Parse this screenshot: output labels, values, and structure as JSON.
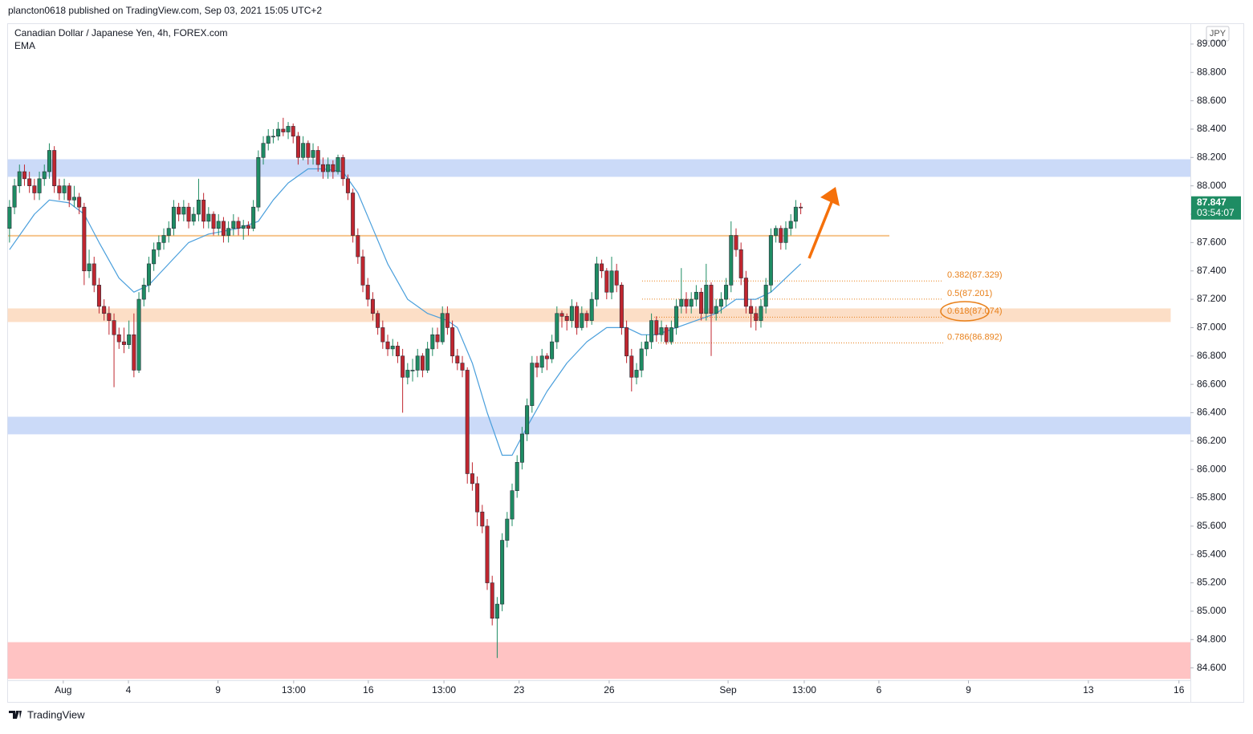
{
  "header": "plancton0618 published on TradingView.com, Sep 03, 2021 15:05 UTC+2",
  "footer": "TradingView",
  "chart_data": {
    "type": "candlestick",
    "title": "Canadian Dollar / Japanese Yen, 4h, FOREX.com",
    "indicator": "EMA",
    "currency": "JPY",
    "last_price_label": "87.847",
    "countdown": "03:54:07",
    "up_color": "#1e8c63",
    "down_color": "#c0262f",
    "candles": [
      [
        87.7,
        87.9,
        87.6,
        87.85
      ],
      [
        87.85,
        88.05,
        87.8,
        88.0
      ],
      [
        88.0,
        88.15,
        87.95,
        88.1
      ],
      [
        88.1,
        88.15,
        88.0,
        88.05
      ],
      [
        88.05,
        88.1,
        87.95,
        88.0
      ],
      [
        88.0,
        88.05,
        87.9,
        87.95
      ],
      [
        87.95,
        88.1,
        87.9,
        88.05
      ],
      [
        88.05,
        88.15,
        88.0,
        88.1
      ],
      [
        88.1,
        88.3,
        88.05,
        88.25
      ],
      [
        88.25,
        88.28,
        87.95,
        88.0
      ],
      [
        88.0,
        88.05,
        87.9,
        87.95
      ],
      [
        87.95,
        88.05,
        87.9,
        88.0
      ],
      [
        88.0,
        88.02,
        87.85,
        87.9
      ],
      [
        87.9,
        88.0,
        87.85,
        87.92
      ],
      [
        87.92,
        87.95,
        87.8,
        87.85
      ],
      [
        87.85,
        87.88,
        87.3,
        87.4
      ],
      [
        87.4,
        87.55,
        87.35,
        87.45
      ],
      [
        87.45,
        87.5,
        87.25,
        87.3
      ],
      [
        87.3,
        87.35,
        87.1,
        87.15
      ],
      [
        87.15,
        87.2,
        87.05,
        87.1
      ],
      [
        87.1,
        87.15,
        86.95,
        87.05
      ],
      [
        87.05,
        87.1,
        86.58,
        86.95
      ],
      [
        86.95,
        87.0,
        86.85,
        86.9
      ],
      [
        86.9,
        87.0,
        86.82,
        86.88
      ],
      [
        86.88,
        87.05,
        86.85,
        86.95
      ],
      [
        86.95,
        87.1,
        86.65,
        86.7
      ],
      [
        86.7,
        87.25,
        86.68,
        87.2
      ],
      [
        87.2,
        87.35,
        87.15,
        87.3
      ],
      [
        87.3,
        87.5,
        87.25,
        87.45
      ],
      [
        87.45,
        87.6,
        87.4,
        87.55
      ],
      [
        87.55,
        87.65,
        87.5,
        87.6
      ],
      [
        87.6,
        87.7,
        87.55,
        87.65
      ],
      [
        87.65,
        87.75,
        87.6,
        87.7
      ],
      [
        87.7,
        87.9,
        87.65,
        87.85
      ],
      [
        87.85,
        87.88,
        87.75,
        87.8
      ],
      [
        87.8,
        87.9,
        87.75,
        87.85
      ],
      [
        87.85,
        87.88,
        87.7,
        87.75
      ],
      [
        87.75,
        87.85,
        87.72,
        87.8
      ],
      [
        87.8,
        88.05,
        87.75,
        87.9
      ],
      [
        87.9,
        87.95,
        87.7,
        87.75
      ],
      [
        87.75,
        87.85,
        87.7,
        87.8
      ],
      [
        87.8,
        87.82,
        87.65,
        87.7
      ],
      [
        87.7,
        87.8,
        87.65,
        87.75
      ],
      [
        87.75,
        87.78,
        87.6,
        87.65
      ],
      [
        87.65,
        87.75,
        87.6,
        87.7
      ],
      [
        87.7,
        87.8,
        87.65,
        87.75
      ],
      [
        87.75,
        87.78,
        87.65,
        87.7
      ],
      [
        87.7,
        87.76,
        87.62,
        87.72
      ],
      [
        87.72,
        87.75,
        87.65,
        87.7
      ],
      [
        87.7,
        87.9,
        87.68,
        87.85
      ],
      [
        87.85,
        88.25,
        87.82,
        88.2
      ],
      [
        88.2,
        88.35,
        88.15,
        88.3
      ],
      [
        88.3,
        88.4,
        88.25,
        88.35
      ],
      [
        88.35,
        88.4,
        88.3,
        88.35
      ],
      [
        88.35,
        88.45,
        88.32,
        88.4
      ],
      [
        88.4,
        88.48,
        88.35,
        88.38
      ],
      [
        88.38,
        88.45,
        88.33,
        88.42
      ],
      [
        88.42,
        88.44,
        88.3,
        88.35
      ],
      [
        88.35,
        88.38,
        88.15,
        88.2
      ],
      [
        88.2,
        88.35,
        88.18,
        88.3
      ],
      [
        88.3,
        88.32,
        88.15,
        88.2
      ],
      [
        88.2,
        88.3,
        88.15,
        88.25
      ],
      [
        88.25,
        88.28,
        88.1,
        88.15
      ],
      [
        88.15,
        88.2,
        88.05,
        88.1
      ],
      [
        88.1,
        88.2,
        88.05,
        88.15
      ],
      [
        88.15,
        88.18,
        88.05,
        88.1
      ],
      [
        88.1,
        88.22,
        88.08,
        88.2
      ],
      [
        88.2,
        88.22,
        88.0,
        88.05
      ],
      [
        88.05,
        88.08,
        87.9,
        87.95
      ],
      [
        87.95,
        87.98,
        87.6,
        87.65
      ],
      [
        87.65,
        87.7,
        87.45,
        87.5
      ],
      [
        87.5,
        87.55,
        87.25,
        87.3
      ],
      [
        87.3,
        87.35,
        87.15,
        87.2
      ],
      [
        87.2,
        87.25,
        87.05,
        87.1
      ],
      [
        87.1,
        87.12,
        86.95,
        87.0
      ],
      [
        87.0,
        87.05,
        86.85,
        86.9
      ],
      [
        86.9,
        86.95,
        86.8,
        86.85
      ],
      [
        86.85,
        86.92,
        86.8,
        86.87
      ],
      [
        86.87,
        86.9,
        86.75,
        86.8
      ],
      [
        86.8,
        86.85,
        86.4,
        86.65
      ],
      [
        86.65,
        86.75,
        86.6,
        86.7
      ],
      [
        86.7,
        86.78,
        86.62,
        86.7
      ],
      [
        86.7,
        86.85,
        86.65,
        86.8
      ],
      [
        86.8,
        86.82,
        86.65,
        86.7
      ],
      [
        86.7,
        86.9,
        86.68,
        86.85
      ],
      [
        86.85,
        87.0,
        86.8,
        86.95
      ],
      [
        86.95,
        87.0,
        86.85,
        86.9
      ],
      [
        86.9,
        87.15,
        86.88,
        87.1
      ],
      [
        87.1,
        87.15,
        86.95,
        87.0
      ],
      [
        87.0,
        87.05,
        86.75,
        86.8
      ],
      [
        86.8,
        86.85,
        86.7,
        86.75
      ],
      [
        86.75,
        86.8,
        86.65,
        86.7
      ],
      [
        86.7,
        86.72,
        85.9,
        85.97
      ],
      [
        85.97,
        86.05,
        85.85,
        85.9
      ],
      [
        85.9,
        85.95,
        85.6,
        85.7
      ],
      [
        85.7,
        85.75,
        85.55,
        85.6
      ],
      [
        85.6,
        85.65,
        85.15,
        85.2
      ],
      [
        85.2,
        85.25,
        84.9,
        84.95
      ],
      [
        84.95,
        85.1,
        84.67,
        85.05
      ],
      [
        85.05,
        85.55,
        85.0,
        85.5
      ],
      [
        85.5,
        85.7,
        85.45,
        85.65
      ],
      [
        85.65,
        85.9,
        85.6,
        85.85
      ],
      [
        85.85,
        86.1,
        85.8,
        86.05
      ],
      [
        86.05,
        86.3,
        86.0,
        86.25
      ],
      [
        86.25,
        86.5,
        86.2,
        86.45
      ],
      [
        86.45,
        86.8,
        86.4,
        86.75
      ],
      [
        86.75,
        86.8,
        86.65,
        86.72
      ],
      [
        86.72,
        86.85,
        86.68,
        86.8
      ],
      [
        86.8,
        86.82,
        86.7,
        86.78
      ],
      [
        86.78,
        86.95,
        86.75,
        86.9
      ],
      [
        86.9,
        87.15,
        86.85,
        87.1
      ],
      [
        87.1,
        87.12,
        87.0,
        87.08
      ],
      [
        87.08,
        87.1,
        86.98,
        87.05
      ],
      [
        87.05,
        87.2,
        87.0,
        87.15
      ],
      [
        87.15,
        87.18,
        86.95,
        87.0
      ],
      [
        87.0,
        87.15,
        86.98,
        87.1
      ],
      [
        87.1,
        87.12,
        87.0,
        87.05
      ],
      [
        87.05,
        87.25,
        87.02,
        87.2
      ],
      [
        87.2,
        87.5,
        87.15,
        87.45
      ],
      [
        87.45,
        87.48,
        87.35,
        87.4
      ],
      [
        87.4,
        87.42,
        87.2,
        87.25
      ],
      [
        87.25,
        87.5,
        87.2,
        87.4
      ],
      [
        87.4,
        87.45,
        87.25,
        87.3
      ],
      [
        87.3,
        87.32,
        86.95,
        87.0
      ],
      [
        87.0,
        87.05,
        86.75,
        86.8
      ],
      [
        86.8,
        86.85,
        86.55,
        86.65
      ],
      [
        86.65,
        86.75,
        86.6,
        86.7
      ],
      [
        86.7,
        86.9,
        86.65,
        86.85
      ],
      [
        86.85,
        86.95,
        86.8,
        86.9
      ],
      [
        86.9,
        87.1,
        86.85,
        87.05
      ],
      [
        87.05,
        87.08,
        86.9,
        86.95
      ],
      [
        86.95,
        87.05,
        86.9,
        87.0
      ],
      [
        87.0,
        87.02,
        86.88,
        86.9
      ],
      [
        86.9,
        87.05,
        86.88,
        87.0
      ],
      [
        87.0,
        87.2,
        86.95,
        87.15
      ],
      [
        87.15,
        87.42,
        87.1,
        87.2
      ],
      [
        87.2,
        87.25,
        87.1,
        87.15
      ],
      [
        87.15,
        87.25,
        87.1,
        87.2
      ],
      [
        87.2,
        87.3,
        87.15,
        87.25
      ],
      [
        87.25,
        87.28,
        87.05,
        87.1
      ],
      [
        87.1,
        87.45,
        87.05,
        87.3
      ],
      [
        87.3,
        87.32,
        86.8,
        87.1
      ],
      [
        87.1,
        87.2,
        87.05,
        87.15
      ],
      [
        87.15,
        87.25,
        87.1,
        87.2
      ],
      [
        87.2,
        87.35,
        87.15,
        87.3
      ],
      [
        87.3,
        87.75,
        87.25,
        87.65
      ],
      [
        87.65,
        87.7,
        87.5,
        87.55
      ],
      [
        87.55,
        87.6,
        87.3,
        87.35
      ],
      [
        87.35,
        87.4,
        87.1,
        87.15
      ],
      [
        87.15,
        87.2,
        87.0,
        87.1
      ],
      [
        87.1,
        87.15,
        86.98,
        87.05
      ],
      [
        87.05,
        87.2,
        87.0,
        87.15
      ],
      [
        87.15,
        87.35,
        87.1,
        87.3
      ],
      [
        87.3,
        87.7,
        87.25,
        87.65
      ],
      [
        87.65,
        87.72,
        87.6,
        87.7
      ],
      [
        87.7,
        87.72,
        87.55,
        87.6
      ],
      [
        87.6,
        87.75,
        87.55,
        87.7
      ],
      [
        87.7,
        87.8,
        87.65,
        87.75
      ],
      [
        87.75,
        87.9,
        87.7,
        87.85
      ],
      [
        87.85,
        87.88,
        87.8,
        87.847
      ]
    ],
    "ema": {
      "color": "#4a9fdc",
      "x": [
        0,
        5,
        8,
        12,
        15,
        18,
        22,
        25,
        28,
        32,
        36,
        40,
        46,
        50,
        53,
        56,
        60,
        63,
        67,
        70,
        73,
        76,
        80,
        84,
        88,
        90,
        93,
        96,
        99,
        101,
        104,
        108,
        112,
        116,
        120,
        124,
        127,
        130,
        134,
        138,
        142,
        146,
        150,
        153,
        156,
        159
      ],
      "values": [
        87.55,
        87.8,
        87.9,
        87.88,
        87.8,
        87.6,
        87.35,
        87.25,
        87.3,
        87.45,
        87.6,
        87.66,
        87.7,
        87.75,
        87.9,
        88.02,
        88.12,
        88.12,
        88.1,
        87.95,
        87.7,
        87.45,
        87.2,
        87.1,
        87.05,
        87.0,
        86.75,
        86.4,
        86.1,
        86.1,
        86.3,
        86.55,
        86.75,
        86.9,
        87.0,
        87.0,
        86.95,
        86.95,
        87.0,
        87.05,
        87.1,
        87.2,
        87.2,
        87.25,
        87.35,
        87.45
      ]
    },
    "zones": [
      {
        "range": [
          88.066,
          88.185
        ],
        "color": "#c3d4f7"
      },
      {
        "range": [
          86.25,
          86.369
        ],
        "color": "#c3d4f7"
      },
      {
        "range": [
          87.042,
          87.133
        ],
        "color": "#fcd9bd"
      },
      {
        "range": [
          84.525,
          84.779
        ],
        "color": "#ffb9b9"
      }
    ],
    "resistance_line": {
      "value": 87.648,
      "color": "#f6c48c"
    },
    "fib_levels": [
      {
        "label": "0.382(87.329)",
        "value": 87.329
      },
      {
        "label": "0.5(87.201)",
        "value": 87.201
      },
      {
        "label": "0.618(87.074)",
        "value": 87.074
      },
      {
        "label": "0.786(86.892)",
        "value": 86.892
      }
    ],
    "fib_color": "#e8801a",
    "xlim": [
      -0.3,
      237.3
    ],
    "xticks": [
      {
        "value": 10.8,
        "label": "Aug"
      },
      {
        "value": 23.9,
        "label": "4"
      },
      {
        "value": 41.9,
        "label": "9"
      },
      {
        "value": 57.1,
        "label": "13:00"
      },
      {
        "value": 72.1,
        "label": "16"
      },
      {
        "value": 87.3,
        "label": "13:00"
      },
      {
        "value": 102.4,
        "label": "23"
      },
      {
        "value": 120.5,
        "label": "26"
      },
      {
        "value": 144.4,
        "label": "Sep"
      },
      {
        "value": 159.7,
        "label": "13:00"
      },
      {
        "value": 174.7,
        "label": "6"
      },
      {
        "value": 192.7,
        "label": "9"
      },
      {
        "value": 216.8,
        "label": "13"
      },
      {
        "value": 235,
        "label": "16"
      }
    ],
    "ylim": [
      84.513,
      89.141
    ],
    "yticks": [
      {
        "value": 84.6,
        "label": "84.600"
      },
      {
        "value": 84.8,
        "label": "84.800"
      },
      {
        "value": 85.0,
        "label": "85.000"
      },
      {
        "value": 85.2,
        "label": "85.200"
      },
      {
        "value": 85.4,
        "label": "85.400"
      },
      {
        "value": 85.6,
        "label": "85.600"
      },
      {
        "value": 85.8,
        "label": "85.800"
      },
      {
        "value": 86.0,
        "label": "86.000"
      },
      {
        "value": 86.2,
        "label": "86.200"
      },
      {
        "value": 86.4,
        "label": "86.400"
      },
      {
        "value": 86.6,
        "label": "86.600"
      },
      {
        "value": 86.8,
        "label": "86.800"
      },
      {
        "value": 87.0,
        "label": "87.000"
      },
      {
        "value": 87.2,
        "label": "87.200"
      },
      {
        "value": 87.4,
        "label": "87.400"
      },
      {
        "value": 87.6,
        "label": "87.600"
      },
      {
        "value": 87.8,
        "label": "87.800"
      },
      {
        "value": 88.0,
        "label": "88.000"
      },
      {
        "value": 88.2,
        "label": "88.200"
      },
      {
        "value": 88.4,
        "label": "88.400"
      },
      {
        "value": 88.6,
        "label": "88.600"
      },
      {
        "value": 88.8,
        "label": "88.800"
      },
      {
        "value": 89.0,
        "label": "89.000"
      }
    ]
  }
}
